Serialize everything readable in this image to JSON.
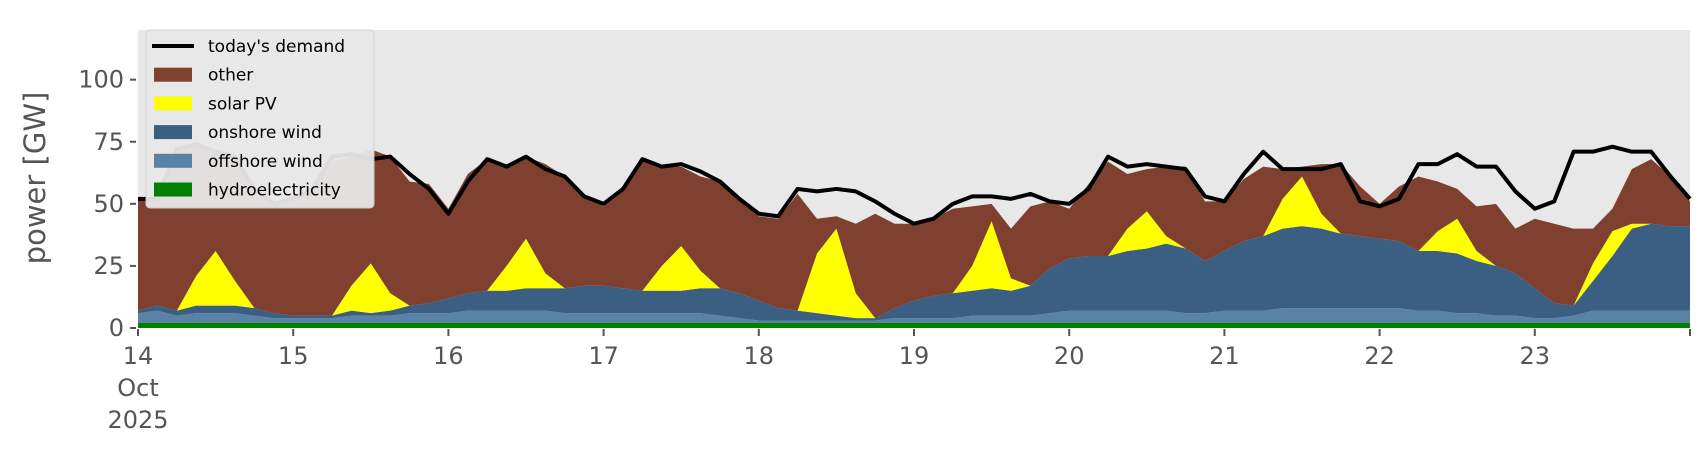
{
  "chart_data": {
    "type": "area",
    "ylabel": "power [GW]",
    "xlabel": "",
    "ylim": [
      0,
      120
    ],
    "xlim": [
      "2025-10-14",
      "2025-10-24"
    ],
    "y_ticks": [
      0,
      25,
      50,
      75,
      100
    ],
    "x_ticks": [
      {
        "date": "2025-10-14",
        "lines": [
          "14",
          "Oct",
          "2025"
        ]
      },
      {
        "date": "2025-10-15",
        "lines": [
          "15"
        ]
      },
      {
        "date": "2025-10-16",
        "lines": [
          "16"
        ]
      },
      {
        "date": "2025-10-17",
        "lines": [
          "17"
        ]
      },
      {
        "date": "2025-10-18",
        "lines": [
          "18"
        ]
      },
      {
        "date": "2025-10-19",
        "lines": [
          "19"
        ]
      },
      {
        "date": "2025-10-20",
        "lines": [
          "20"
        ]
      },
      {
        "date": "2025-10-21",
        "lines": [
          "21"
        ]
      },
      {
        "date": "2025-10-22",
        "lines": [
          "22"
        ]
      },
      {
        "date": "2025-10-23",
        "lines": [
          "23"
        ]
      }
    ],
    "grid": false,
    "background": "#e8e8e8",
    "legend_position": "top-left",
    "x": [
      "2025-10-14 00:00",
      "2025-10-14 03:00",
      "2025-10-14 06:00",
      "2025-10-14 09:00",
      "2025-10-14 12:00",
      "2025-10-14 15:00",
      "2025-10-14 18:00",
      "2025-10-14 21:00",
      "2025-10-15 00:00",
      "2025-10-15 03:00",
      "2025-10-15 06:00",
      "2025-10-15 09:00",
      "2025-10-15 12:00",
      "2025-10-15 15:00",
      "2025-10-15 18:00",
      "2025-10-15 21:00",
      "2025-10-16 00:00",
      "2025-10-16 03:00",
      "2025-10-16 06:00",
      "2025-10-16 09:00",
      "2025-10-16 12:00",
      "2025-10-16 15:00",
      "2025-10-16 18:00",
      "2025-10-16 21:00",
      "2025-10-17 00:00",
      "2025-10-17 03:00",
      "2025-10-17 06:00",
      "2025-10-17 09:00",
      "2025-10-17 12:00",
      "2025-10-17 15:00",
      "2025-10-17 18:00",
      "2025-10-17 21:00",
      "2025-10-18 00:00",
      "2025-10-18 03:00",
      "2025-10-18 06:00",
      "2025-10-18 09:00",
      "2025-10-18 12:00",
      "2025-10-18 15:00",
      "2025-10-18 18:00",
      "2025-10-18 21:00",
      "2025-10-19 00:00",
      "2025-10-19 03:00",
      "2025-10-19 06:00",
      "2025-10-19 09:00",
      "2025-10-19 12:00",
      "2025-10-19 15:00",
      "2025-10-19 18:00",
      "2025-10-19 21:00",
      "2025-10-20 00:00",
      "2025-10-20 03:00",
      "2025-10-20 06:00",
      "2025-10-20 09:00",
      "2025-10-20 12:00",
      "2025-10-20 15:00",
      "2025-10-20 18:00",
      "2025-10-20 21:00",
      "2025-10-21 00:00",
      "2025-10-21 03:00",
      "2025-10-21 06:00",
      "2025-10-21 09:00",
      "2025-10-21 12:00",
      "2025-10-21 15:00",
      "2025-10-21 18:00",
      "2025-10-21 21:00",
      "2025-10-22 00:00",
      "2025-10-22 03:00",
      "2025-10-22 06:00",
      "2025-10-22 09:00",
      "2025-10-22 12:00",
      "2025-10-22 15:00",
      "2025-10-22 18:00",
      "2025-10-22 21:00",
      "2025-10-23 00:00",
      "2025-10-23 03:00",
      "2025-10-23 06:00",
      "2025-10-23 09:00",
      "2025-10-23 12:00",
      "2025-10-23 15:00",
      "2025-10-23 18:00",
      "2025-10-23 21:00",
      "2025-10-24 00:00"
    ],
    "stack_series": [
      {
        "name": "hydroelectricity",
        "color": "#008000",
        "values": [
          2,
          2,
          2,
          2,
          2,
          2,
          2,
          2,
          2,
          2,
          2,
          2,
          2,
          2,
          2,
          2,
          2,
          2,
          2,
          2,
          2,
          2,
          2,
          2,
          2,
          2,
          2,
          2,
          2,
          2,
          2,
          2,
          2,
          2,
          2,
          2,
          2,
          2,
          2,
          2,
          2,
          2,
          2,
          2,
          2,
          2,
          2,
          2,
          2,
          2,
          2,
          2,
          2,
          2,
          2,
          2,
          2,
          2,
          2,
          2,
          2,
          2,
          2,
          2,
          2,
          2,
          2,
          2,
          2,
          2,
          2,
          2,
          2,
          2,
          2,
          2,
          2,
          2,
          2,
          2,
          2
        ]
      },
      {
        "name": "offshore wind",
        "color": "#5a81a6",
        "values": [
          4,
          5,
          3,
          4,
          4,
          4,
          3,
          2,
          2,
          2,
          2,
          3,
          3,
          3,
          4,
          4,
          4,
          5,
          5,
          5,
          5,
          5,
          4,
          4,
          4,
          4,
          4,
          4,
          4,
          4,
          3,
          2,
          1,
          1,
          1,
          1,
          1,
          1,
          1,
          2,
          2,
          2,
          2,
          3,
          3,
          3,
          3,
          4,
          5,
          5,
          5,
          5,
          5,
          5,
          4,
          4,
          5,
          5,
          5,
          6,
          6,
          6,
          6,
          6,
          6,
          6,
          5,
          5,
          4,
          4,
          3,
          3,
          2,
          2,
          3,
          5,
          5,
          5,
          5,
          5,
          5
        ]
      },
      {
        "name": "onshore wind",
        "color": "#3a5f82",
        "values": [
          1,
          2,
          2,
          3,
          3,
          3,
          3,
          2,
          1,
          1,
          1,
          2,
          1,
          2,
          3,
          4,
          6,
          7,
          8,
          8,
          9,
          9,
          10,
          11,
          11,
          10,
          9,
          9,
          9,
          10,
          11,
          10,
          8,
          5,
          4,
          3,
          2,
          1,
          1,
          4,
          7,
          9,
          10,
          10,
          11,
          10,
          12,
          18,
          21,
          22,
          22,
          24,
          25,
          27,
          26,
          21,
          24,
          28,
          30,
          32,
          33,
          32,
          30,
          29,
          28,
          27,
          24,
          24,
          24,
          21,
          20,
          17,
          12,
          6,
          4,
          12,
          22,
          33,
          35,
          34,
          34
        ]
      },
      {
        "name": "solar PV",
        "color": "#ffff00",
        "values": [
          0,
          0,
          0,
          12,
          22,
          10,
          0,
          0,
          0,
          0,
          0,
          10,
          20,
          7,
          0,
          0,
          0,
          0,
          0,
          10,
          20,
          6,
          0,
          0,
          0,
          0,
          0,
          10,
          18,
          7,
          0,
          0,
          0,
          0,
          0,
          24,
          35,
          10,
          0,
          0,
          0,
          0,
          0,
          10,
          27,
          5,
          0,
          0,
          0,
          0,
          0,
          9,
          15,
          3,
          0,
          0,
          0,
          0,
          0,
          12,
          20,
          6,
          0,
          0,
          0,
          0,
          0,
          8,
          14,
          4,
          0,
          0,
          0,
          0,
          0,
          7,
          10,
          2,
          0,
          0,
          0
        ]
      },
      {
        "name": "other",
        "color": "#7f4030",
        "values": [
          45,
          43,
          65,
          53,
          40,
          50,
          48,
          44,
          48,
          51,
          62,
          52,
          46,
          55,
          50,
          48,
          36,
          48,
          53,
          40,
          33,
          44,
          45,
          36,
          32,
          40,
          53,
          40,
          32,
          38,
          43,
          38,
          34,
          36,
          47,
          14,
          5,
          28,
          42,
          34,
          31,
          31,
          34,
          24,
          7,
          20,
          32,
          27,
          20,
          29,
          38,
          22,
          17,
          28,
          33,
          24,
          20,
          25,
          28,
          12,
          4,
          20,
          28,
          20,
          14,
          22,
          30,
          20,
          12,
          18,
          25,
          18,
          28,
          32,
          31,
          14,
          9,
          22,
          26,
          20,
          10
        ]
      }
    ],
    "demand_series": {
      "name": "today's demand",
      "color": "#000000",
      "values": [
        52,
        52,
        72,
        74,
        71,
        69,
        56,
        50,
        52,
        56,
        69,
        70,
        68,
        69,
        62,
        56,
        46,
        59,
        68,
        65,
        69,
        64,
        61,
        53,
        50,
        56,
        68,
        65,
        66,
        63,
        59,
        52,
        46,
        45,
        56,
        55,
        56,
        55,
        51,
        46,
        42,
        44,
        50,
        53,
        53,
        52,
        54,
        51,
        50,
        56,
        69,
        65,
        66,
        65,
        64,
        53,
        51,
        62,
        71,
        64,
        64,
        64,
        66,
        51,
        49,
        52,
        66,
        66,
        70,
        65,
        65,
        55,
        48,
        51,
        71,
        71,
        73,
        71,
        71,
        61,
        52
      ],
      "note_segments_gray": [
        [
          2,
          4
        ],
        [
          10,
          12
        ]
      ]
    }
  }
}
